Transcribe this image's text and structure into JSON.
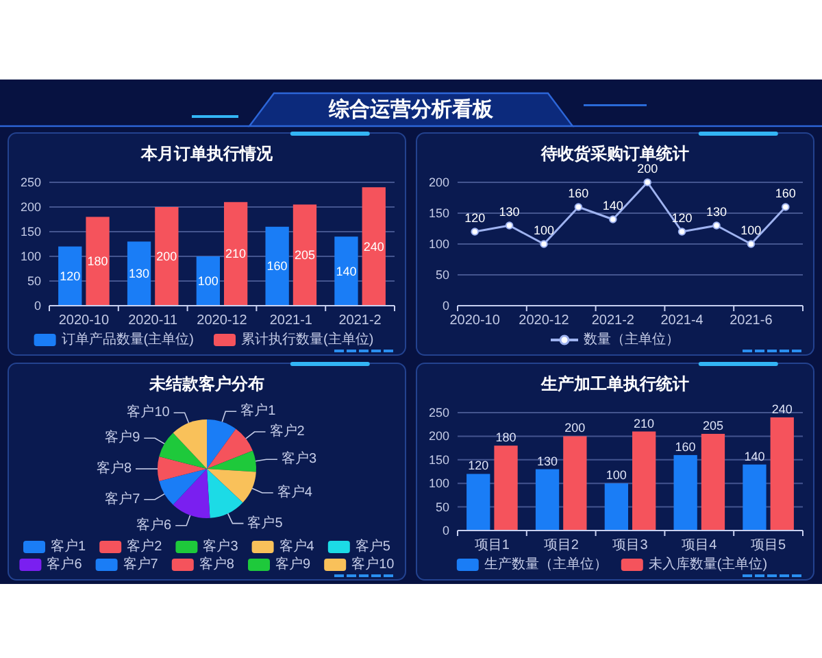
{
  "chart_data": [
    {
      "type": "other",
      "title": "综合运营分析看板"
    },
    {
      "type": "bar",
      "title": "本月订单执行情况",
      "categories": [
        "2020-10",
        "2020-11",
        "2020-12",
        "2021-1",
        "2021-2"
      ],
      "series": [
        {
          "name": "订单产品数量(主单位)",
          "color": "#1a7df6",
          "values": [
            120,
            130,
            100,
            160,
            140
          ]
        },
        {
          "name": "累计执行数量(主单位)",
          "color": "#f5535c",
          "values": [
            180,
            200,
            210,
            205,
            240
          ]
        }
      ],
      "ylim": [
        0,
        250
      ],
      "yticks": [
        0,
        50,
        100,
        150,
        200,
        250
      ],
      "grid": "y",
      "legend": "bottom",
      "data_labels": true
    },
    {
      "type": "line",
      "title": "待收货采购订单统计",
      "categories": [
        "2020-10",
        null,
        "2020-12",
        null,
        "2021-2",
        null,
        "2021-4",
        null,
        "2021-6",
        null
      ],
      "series": [
        {
          "name": "数量（主单位）",
          "color": "#9fb3f0",
          "values": [
            120,
            130,
            100,
            160,
            140,
            200,
            120,
            130,
            100,
            160
          ]
        }
      ],
      "ylim": [
        0,
        200
      ],
      "yticks": [
        0,
        50,
        100,
        150,
        200
      ],
      "grid": "y",
      "legend": "bottom",
      "marker": "circle",
      "data_labels": true
    },
    {
      "type": "pie",
      "title": "未结款客户分布",
      "categories": [
        "客户1",
        "客户2",
        "客户3",
        "客户4",
        "客户5",
        "客户6",
        "客户7",
        "客户8",
        "客户9",
        "客户10"
      ],
      "values": [
        10,
        9,
        7,
        11,
        12,
        13,
        9,
        8,
        9,
        12
      ],
      "colors": [
        "#1a7df6",
        "#f5535c",
        "#1ec93b",
        "#f9c15a",
        "#1cdbe6",
        "#7a1ff0",
        "#1a7df6",
        "#f5535c",
        "#1ec93b",
        "#f9c15a"
      ],
      "legend": "bottom"
    },
    {
      "type": "bar",
      "title": "生产加工单执行统计",
      "categories": [
        "项目1",
        "项目2",
        "项目3",
        "项目4",
        "项目5"
      ],
      "series": [
        {
          "name": "生产数量（主单位）",
          "color": "#1a7df6",
          "values": [
            120,
            130,
            100,
            160,
            140
          ]
        },
        {
          "name": "未入库数量(主单位)",
          "color": "#f5535c",
          "values": [
            180,
            200,
            210,
            205,
            240
          ]
        }
      ],
      "ylim": [
        0,
        250
      ],
      "yticks": [
        0,
        50,
        100,
        150,
        200,
        250
      ],
      "grid": "y",
      "legend": "bottom",
      "data_labels": true
    }
  ]
}
